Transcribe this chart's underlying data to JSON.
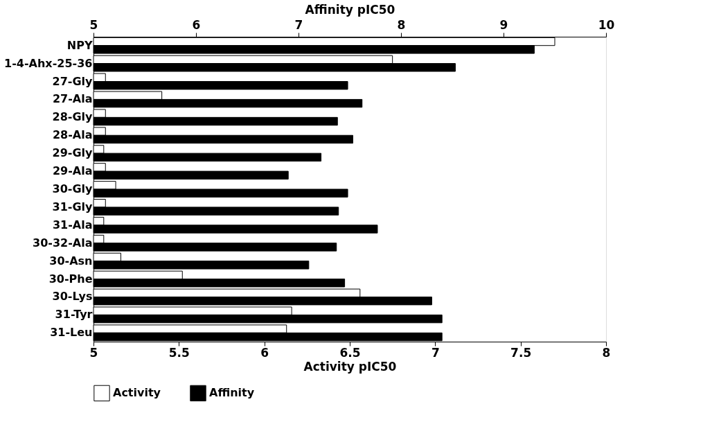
{
  "chart_data": {
    "type": "bar",
    "orientation": "horizontal",
    "categories": [
      "NPY",
      "1-4-Ahx-25-36",
      "27-Gly",
      "27-Ala",
      "28-Gly",
      "28-Ala",
      "29-Gly",
      "29-Ala",
      "30-Gly",
      "31-Gly",
      "31-Ala",
      "30-32-Ala",
      "30-Asn",
      "30-Phe",
      "30-Lys",
      "31-Tyr",
      "31-Leu"
    ],
    "series": [
      {
        "name": "Activity",
        "color": "#ffffff",
        "values": [
          7.7,
          6.75,
          5.07,
          5.4,
          5.07,
          5.07,
          5.06,
          5.07,
          5.13,
          5.07,
          5.06,
          5.06,
          5.16,
          5.52,
          6.56,
          6.16,
          6.13
        ]
      },
      {
        "name": "Affinity",
        "color": "#000000",
        "axis": "x2",
        "values": [
          9.3,
          8.53,
          7.48,
          7.62,
          7.38,
          7.53,
          7.22,
          6.9,
          7.48,
          7.39,
          7.77,
          7.37,
          7.1,
          7.45,
          8.3,
          8.4,
          8.4
        ]
      }
    ],
    "xlabel": "Activity pIC50",
    "x2label": "Affinity pIC50",
    "xlim": [
      5,
      8
    ],
    "xticks": [
      5,
      5.5,
      6,
      6.5,
      7,
      7.5,
      8
    ],
    "x2lim": [
      5,
      10
    ],
    "x2ticks": [
      5,
      6,
      7,
      8,
      9,
      10
    ],
    "legend": "bottom"
  }
}
